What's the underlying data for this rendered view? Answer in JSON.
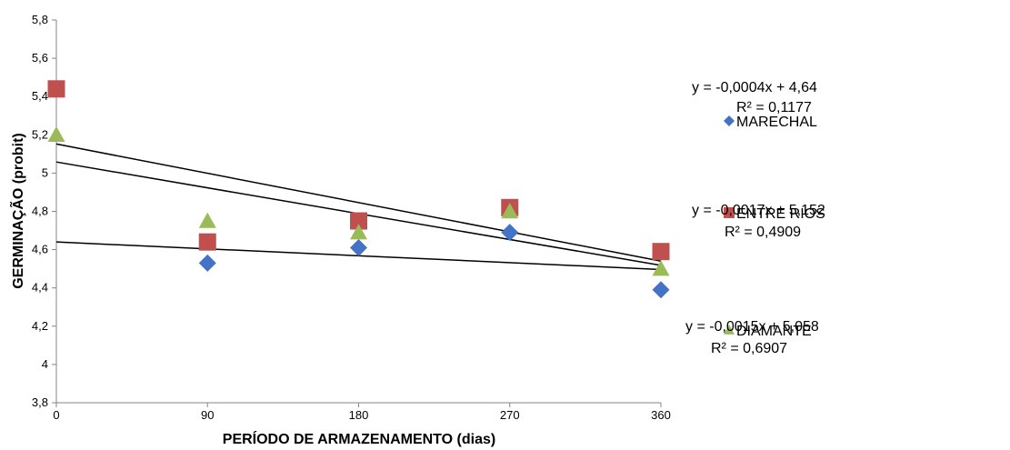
{
  "chart_data": {
    "type": "scatter",
    "xlabel": "PERÍODO DE ARMAZENAMENTO (dias)",
    "ylabel": "GERMINAÇÃO (probit)",
    "xlim": [
      0,
      360
    ],
    "ylim": [
      3.8,
      5.8
    ],
    "x_ticks": [
      "0",
      "90",
      "180",
      "270",
      "360"
    ],
    "x_tick_values": [
      0,
      90,
      180,
      270,
      360
    ],
    "y_ticks": [
      "3,8",
      "4",
      "4,2",
      "4,4",
      "4,6",
      "4,8",
      "5",
      "5,2",
      "5,4",
      "5,6",
      "5,8"
    ],
    "y_tick_values": [
      3.8,
      4.0,
      4.2,
      4.4,
      4.6,
      4.8,
      5.0,
      5.2,
      5.4,
      5.6,
      5.8
    ],
    "grid": false,
    "legend_position": "right",
    "series": [
      {
        "name": "MARECHAL",
        "marker": "diamond",
        "color": "#4472C4",
        "x": [
          90,
          180,
          270,
          360
        ],
        "y": [
          4.53,
          4.61,
          4.69,
          4.39
        ],
        "trendline": {
          "slope": -0.0004,
          "intercept": 4.64,
          "equation": "y = -0,0004x + 4,64",
          "r2": "R² = 0,1177"
        }
      },
      {
        "name": "ENTRE RIOS",
        "marker": "square",
        "color": "#C0504D",
        "x": [
          0,
          90,
          180,
          270,
          360
        ],
        "y": [
          5.44,
          4.64,
          4.75,
          4.82,
          4.59
        ],
        "trendline": {
          "slope": -0.0017,
          "intercept": 5.152,
          "equation": "y = -0,0017x + 5,152",
          "r2": "R² = 0,4909"
        }
      },
      {
        "name": "DIAMANTE",
        "marker": "triangle",
        "color": "#9BBB59",
        "x": [
          0,
          90,
          180,
          270,
          360
        ],
        "y": [
          5.2,
          4.75,
          4.69,
          4.8,
          4.5
        ],
        "trendline": {
          "slope": -0.0015,
          "intercept": 5.058,
          "equation": "y = -0,0015x + 5,058",
          "r2": "R² = 0,6907"
        }
      }
    ]
  }
}
